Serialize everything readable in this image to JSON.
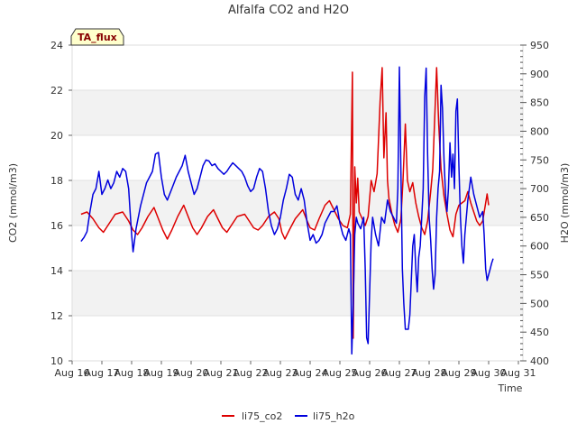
{
  "chart_data": {
    "type": "line",
    "title": "Alfalfa CO2 and H2O",
    "xlabel": "Time",
    "ylabel": "CO2 (mmol/m3)",
    "y2label": "H2O (mmol/m3)",
    "badge": "TA_flux",
    "x_ticks": [
      "Aug 16",
      "Aug 17",
      "Aug 18",
      "Aug 19",
      "Aug 20",
      "Aug 21",
      "Aug 22",
      "Aug 23",
      "Aug 24",
      "Aug 25",
      "Aug 26",
      "Aug 27",
      "Aug 28",
      "Aug 29",
      "Aug 30",
      "Aug 31"
    ],
    "xlim": [
      0,
      15
    ],
    "ylim": [
      10,
      24
    ],
    "y_ticks": [
      10,
      12,
      14,
      16,
      18,
      20,
      22,
      24
    ],
    "y2lim": [
      400,
      950
    ],
    "y2_ticks": [
      400,
      450,
      500,
      550,
      600,
      650,
      700,
      750,
      800,
      850,
      900,
      950
    ],
    "grid_bands": [
      [
        12,
        14
      ],
      [
        16,
        18
      ],
      [
        20,
        22
      ]
    ],
    "legend_position": "bottom-center",
    "series": [
      {
        "name": "li75_co2",
        "axis": "left",
        "color": "#dd0000",
        "points": [
          [
            0.3,
            16.5
          ],
          [
            0.5,
            16.6
          ],
          [
            0.7,
            16.3
          ],
          [
            0.9,
            15.9
          ],
          [
            1.05,
            15.7
          ],
          [
            1.2,
            16.0
          ],
          [
            1.45,
            16.5
          ],
          [
            1.7,
            16.6
          ],
          [
            1.9,
            16.2
          ],
          [
            2.05,
            15.8
          ],
          [
            2.2,
            15.6
          ],
          [
            2.35,
            15.9
          ],
          [
            2.55,
            16.4
          ],
          [
            2.75,
            16.8
          ],
          [
            2.9,
            16.3
          ],
          [
            3.05,
            15.8
          ],
          [
            3.2,
            15.4
          ],
          [
            3.35,
            15.8
          ],
          [
            3.55,
            16.4
          ],
          [
            3.75,
            16.9
          ],
          [
            3.9,
            16.4
          ],
          [
            4.05,
            15.9
          ],
          [
            4.2,
            15.6
          ],
          [
            4.35,
            15.9
          ],
          [
            4.55,
            16.4
          ],
          [
            4.75,
            16.7
          ],
          [
            4.9,
            16.3
          ],
          [
            5.05,
            15.9
          ],
          [
            5.2,
            15.7
          ],
          [
            5.35,
            16.0
          ],
          [
            5.55,
            16.4
          ],
          [
            5.8,
            16.5
          ],
          [
            5.95,
            16.2
          ],
          [
            6.1,
            15.9
          ],
          [
            6.25,
            15.8
          ],
          [
            6.4,
            16.0
          ],
          [
            6.6,
            16.4
          ],
          [
            6.8,
            16.6
          ],
          [
            6.95,
            16.3
          ],
          [
            7.05,
            15.7
          ],
          [
            7.15,
            15.4
          ],
          [
            7.3,
            15.8
          ],
          [
            7.5,
            16.3
          ],
          [
            7.75,
            16.7
          ],
          [
            7.9,
            16.2
          ],
          [
            8.0,
            15.9
          ],
          [
            8.15,
            15.8
          ],
          [
            8.3,
            16.3
          ],
          [
            8.5,
            16.9
          ],
          [
            8.65,
            17.1
          ],
          [
            8.8,
            16.7
          ],
          [
            8.95,
            16.3
          ],
          [
            9.1,
            16.0
          ],
          [
            9.25,
            15.9
          ],
          [
            9.35,
            16.5
          ],
          [
            9.42,
            22.8
          ],
          [
            9.45,
            11.0
          ],
          [
            9.5,
            18.6
          ],
          [
            9.55,
            17.0
          ],
          [
            9.6,
            18.1
          ],
          [
            9.65,
            16.6
          ],
          [
            9.75,
            16.3
          ],
          [
            9.85,
            16.0
          ],
          [
            9.95,
            16.4
          ],
          [
            10.05,
            18.0
          ],
          [
            10.15,
            17.5
          ],
          [
            10.25,
            18.3
          ],
          [
            10.35,
            21.5
          ],
          [
            10.42,
            23.0
          ],
          [
            10.48,
            19.0
          ],
          [
            10.55,
            21.0
          ],
          [
            10.6,
            18.0
          ],
          [
            10.65,
            17.2
          ],
          [
            10.75,
            16.5
          ],
          [
            10.85,
            16.0
          ],
          [
            10.95,
            15.7
          ],
          [
            11.05,
            16.3
          ],
          [
            11.12,
            18.0
          ],
          [
            11.2,
            20.5
          ],
          [
            11.27,
            18.0
          ],
          [
            11.35,
            17.5
          ],
          [
            11.45,
            17.9
          ],
          [
            11.55,
            17.0
          ],
          [
            11.65,
            16.4
          ],
          [
            11.75,
            15.9
          ],
          [
            11.85,
            15.6
          ],
          [
            11.95,
            16.2
          ],
          [
            12.05,
            17.5
          ],
          [
            12.12,
            18.5
          ],
          [
            12.2,
            21.2
          ],
          [
            12.25,
            23.0
          ],
          [
            12.32,
            20.5
          ],
          [
            12.4,
            18.5
          ],
          [
            12.5,
            17.3
          ],
          [
            12.6,
            16.5
          ],
          [
            12.7,
            15.8
          ],
          [
            12.8,
            15.5
          ],
          [
            12.9,
            16.5
          ],
          [
            13.0,
            16.9
          ],
          [
            13.1,
            17.0
          ],
          [
            13.2,
            17.1
          ],
          [
            13.3,
            17.5
          ],
          [
            13.4,
            17.0
          ],
          [
            13.5,
            16.6
          ],
          [
            13.6,
            16.2
          ],
          [
            13.7,
            16.0
          ],
          [
            13.8,
            16.2
          ],
          [
            13.9,
            17.0
          ],
          [
            13.95,
            17.4
          ],
          [
            14.0,
            16.9
          ]
        ]
      },
      {
        "name": "li75_h2o",
        "axis": "right",
        "color": "#0000dd",
        "points": [
          [
            0.3,
            608
          ],
          [
            0.4,
            615
          ],
          [
            0.5,
            625
          ],
          [
            0.6,
            660
          ],
          [
            0.7,
            690
          ],
          [
            0.8,
            700
          ],
          [
            0.9,
            730
          ],
          [
            1.0,
            690
          ],
          [
            1.1,
            700
          ],
          [
            1.2,
            715
          ],
          [
            1.3,
            700
          ],
          [
            1.4,
            710
          ],
          [
            1.5,
            730
          ],
          [
            1.6,
            720
          ],
          [
            1.7,
            735
          ],
          [
            1.8,
            730
          ],
          [
            1.9,
            700
          ],
          [
            1.95,
            660
          ],
          [
            2.0,
            620
          ],
          [
            2.05,
            590
          ],
          [
            2.15,
            630
          ],
          [
            2.3,
            670
          ],
          [
            2.5,
            710
          ],
          [
            2.6,
            720
          ],
          [
            2.7,
            730
          ],
          [
            2.8,
            760
          ],
          [
            2.9,
            763
          ],
          [
            3.0,
            720
          ],
          [
            3.1,
            690
          ],
          [
            3.2,
            680
          ],
          [
            3.35,
            700
          ],
          [
            3.5,
            720
          ],
          [
            3.6,
            730
          ],
          [
            3.7,
            740
          ],
          [
            3.8,
            758
          ],
          [
            3.9,
            730
          ],
          [
            4.0,
            710
          ],
          [
            4.1,
            690
          ],
          [
            4.2,
            700
          ],
          [
            4.3,
            720
          ],
          [
            4.4,
            740
          ],
          [
            4.5,
            750
          ],
          [
            4.6,
            748
          ],
          [
            4.7,
            740
          ],
          [
            4.8,
            743
          ],
          [
            4.9,
            735
          ],
          [
            5.0,
            730
          ],
          [
            5.1,
            725
          ],
          [
            5.2,
            730
          ],
          [
            5.3,
            738
          ],
          [
            5.4,
            745
          ],
          [
            5.5,
            740
          ],
          [
            5.6,
            735
          ],
          [
            5.7,
            730
          ],
          [
            5.8,
            720
          ],
          [
            5.9,
            705
          ],
          [
            6.0,
            695
          ],
          [
            6.1,
            700
          ],
          [
            6.2,
            720
          ],
          [
            6.3,
            735
          ],
          [
            6.4,
            730
          ],
          [
            6.5,
            700
          ],
          [
            6.6,
            660
          ],
          [
            6.7,
            635
          ],
          [
            6.8,
            620
          ],
          [
            6.9,
            630
          ],
          [
            7.0,
            650
          ],
          [
            7.1,
            680
          ],
          [
            7.2,
            700
          ],
          [
            7.3,
            725
          ],
          [
            7.4,
            720
          ],
          [
            7.5,
            690
          ],
          [
            7.6,
            680
          ],
          [
            7.7,
            700
          ],
          [
            7.8,
            680
          ],
          [
            7.9,
            640
          ],
          [
            8.0,
            610
          ],
          [
            8.1,
            620
          ],
          [
            8.2,
            605
          ],
          [
            8.3,
            610
          ],
          [
            8.4,
            620
          ],
          [
            8.5,
            640
          ],
          [
            8.6,
            650
          ],
          [
            8.7,
            660
          ],
          [
            8.8,
            660
          ],
          [
            8.9,
            670
          ],
          [
            9.0,
            640
          ],
          [
            9.1,
            620
          ],
          [
            9.2,
            610
          ],
          [
            9.3,
            630
          ],
          [
            9.35,
            620
          ],
          [
            9.4,
            412
          ],
          [
            9.45,
            500
          ],
          [
            9.5,
            620
          ],
          [
            9.55,
            650
          ],
          [
            9.6,
            640
          ],
          [
            9.7,
            630
          ],
          [
            9.8,
            650
          ],
          [
            9.85,
            560
          ],
          [
            9.9,
            440
          ],
          [
            9.95,
            430
          ],
          [
            10.0,
            520
          ],
          [
            10.05,
            610
          ],
          [
            10.1,
            650
          ],
          [
            10.2,
            620
          ],
          [
            10.3,
            600
          ],
          [
            10.4,
            650
          ],
          [
            10.5,
            640
          ],
          [
            10.6,
            680
          ],
          [
            10.7,
            660
          ],
          [
            10.8,
            650
          ],
          [
            10.9,
            640
          ],
          [
            10.95,
            700
          ],
          [
            11.0,
            912
          ],
          [
            11.05,
            730
          ],
          [
            11.1,
            560
          ],
          [
            11.15,
            500
          ],
          [
            11.2,
            455
          ],
          [
            11.3,
            455
          ],
          [
            11.35,
            480
          ],
          [
            11.4,
            540
          ],
          [
            11.45,
            600
          ],
          [
            11.5,
            620
          ],
          [
            11.55,
            560
          ],
          [
            11.6,
            520
          ],
          [
            11.65,
            580
          ],
          [
            11.7,
            600
          ],
          [
            11.75,
            650
          ],
          [
            11.8,
            700
          ],
          [
            11.85,
            860
          ],
          [
            11.9,
            910
          ],
          [
            11.95,
            760
          ],
          [
            12.0,
            650
          ],
          [
            12.05,
            610
          ],
          [
            12.1,
            560
          ],
          [
            12.15,
            525
          ],
          [
            12.2,
            550
          ],
          [
            12.25,
            650
          ],
          [
            12.3,
            700
          ],
          [
            12.35,
            730
          ],
          [
            12.4,
            880
          ],
          [
            12.45,
            840
          ],
          [
            12.5,
            750
          ],
          [
            12.55,
            690
          ],
          [
            12.6,
            660
          ],
          [
            12.65,
            700
          ],
          [
            12.7,
            780
          ],
          [
            12.75,
            720
          ],
          [
            12.8,
            760
          ],
          [
            12.85,
            700
          ],
          [
            12.9,
            835
          ],
          [
            12.95,
            856
          ],
          [
            13.0,
            740
          ],
          [
            13.05,
            650
          ],
          [
            13.1,
            600
          ],
          [
            13.15,
            570
          ],
          [
            13.2,
            620
          ],
          [
            13.3,
            680
          ],
          [
            13.4,
            720
          ],
          [
            13.5,
            690
          ],
          [
            13.6,
            670
          ],
          [
            13.7,
            650
          ],
          [
            13.8,
            660
          ],
          [
            13.85,
            620
          ],
          [
            13.9,
            560
          ],
          [
            13.95,
            540
          ],
          [
            14.0,
            550
          ],
          [
            14.05,
            560
          ],
          [
            14.1,
            570
          ],
          [
            14.15,
            578
          ]
        ]
      }
    ]
  }
}
